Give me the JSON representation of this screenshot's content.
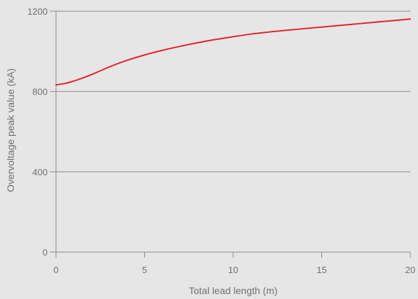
{
  "chart_data": {
    "type": "line",
    "title": "",
    "xlabel": "Total lead length (m)",
    "ylabel": "Overvoltage peak value (kA)",
    "xlim": [
      0,
      20
    ],
    "ylim": [
      0,
      1200
    ],
    "x_ticks": [
      0,
      5,
      10,
      15,
      20
    ],
    "y_ticks": [
      0,
      400,
      800,
      1200
    ],
    "grid": "horizontal",
    "legend": "none",
    "series": [
      {
        "color": "#e3242b",
        "x": [
          0,
          0.5,
          1,
          1.5,
          2,
          2.5,
          3,
          4,
          5,
          6,
          7,
          8,
          9,
          10,
          11,
          12,
          13,
          14,
          15,
          16,
          17,
          18,
          19,
          20
        ],
        "y": [
          833,
          840,
          852,
          867,
          884,
          903,
          922,
          955,
          982,
          1005,
          1025,
          1043,
          1059,
          1073,
          1086,
          1096,
          1105,
          1113,
          1121,
          1129,
          1137,
          1145,
          1153,
          1161
        ]
      }
    ]
  }
}
